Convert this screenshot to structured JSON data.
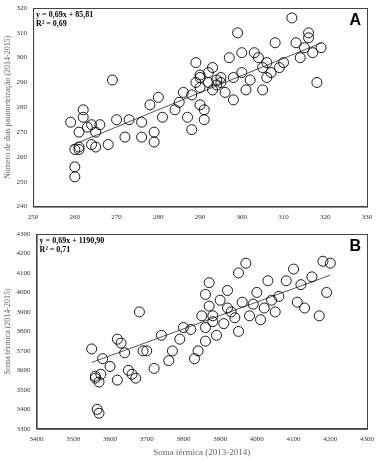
{
  "chart_data": [
    {
      "type": "scatter",
      "panel_label": "A",
      "annotations": [
        "y = 0,69x + 85,81",
        "R² = 0,69"
      ],
      "y_label": "Número de dias parametrização (2014-2015)",
      "trendline": {
        "slope": 0.69,
        "intercept": 85.81
      },
      "color": "#000000",
      "marker": "circle",
      "grid": false,
      "xlim": [
        250,
        330
      ],
      "xticks": [
        250,
        260,
        270,
        280,
        290,
        300,
        310,
        320,
        330
      ],
      "ylim": [
        240,
        320
      ],
      "yticks": [
        240,
        250,
        260,
        270,
        280,
        290,
        300,
        310,
        320
      ],
      "x": [
        259,
        260,
        261,
        261,
        260,
        260,
        261,
        262,
        262,
        263,
        264,
        264,
        265,
        265,
        266,
        268,
        269,
        270,
        272,
        273,
        276,
        276,
        278,
        279,
        279,
        280,
        281,
        284,
        285,
        286,
        287,
        288,
        288,
        289,
        289,
        290,
        290,
        290,
        290,
        291,
        291,
        292,
        292,
        293,
        293,
        294,
        294,
        295,
        295,
        296,
        297,
        298,
        298,
        299,
        300,
        300,
        301,
        302,
        303,
        304,
        305,
        305,
        306,
        306,
        307,
        308,
        309,
        310,
        312,
        313,
        314,
        315,
        316,
        316,
        317,
        318,
        319
      ],
      "values": [
        274,
        263,
        264,
        263,
        252,
        256,
        270,
        276,
        279,
        272,
        265,
        273,
        270,
        264,
        273,
        265,
        291,
        275,
        268,
        275,
        268,
        274,
        281,
        270,
        266,
        284,
        276,
        279,
        282,
        286,
        276,
        271,
        285,
        290,
        298,
        281,
        292,
        288,
        293,
        275,
        279,
        294,
        290,
        296,
        287,
        289,
        291,
        290,
        292,
        286,
        300,
        283,
        292,
        310,
        302,
        294,
        287,
        291,
        302,
        300,
        287,
        296,
        298,
        292,
        294,
        306,
        296,
        298,
        316,
        306,
        300,
        304,
        308,
        310,
        302,
        290,
        304
      ]
    },
    {
      "type": "scatter",
      "panel_label": "B",
      "annotations": [
        "y = 0,69x + 1190,90",
        "R² = 0,71"
      ],
      "x_label": "Soma térmica (2013-2014)",
      "y_label": "Soma térmica (2014-2015)",
      "trendline": {
        "slope": 0.69,
        "intercept": 1190.9
      },
      "color": "#000000",
      "marker": "circle",
      "grid": false,
      "xlim": [
        3400,
        4300
      ],
      "xticks": [
        3400,
        3500,
        3600,
        3700,
        3800,
        3900,
        4000,
        4100,
        4200,
        4300
      ],
      "ylim": [
        3300,
        4300
      ],
      "yticks": [
        3300,
        3400,
        3500,
        3600,
        3700,
        3800,
        3900,
        4000,
        4100,
        4200,
        4300
      ],
      "x": [
        3550,
        3560,
        3560,
        3570,
        3565,
        3570,
        3575,
        3580,
        3600,
        3620,
        3620,
        3630,
        3640,
        3650,
        3660,
        3670,
        3680,
        3690,
        3700,
        3720,
        3740,
        3760,
        3770,
        3790,
        3800,
        3820,
        3830,
        3840,
        3850,
        3860,
        3860,
        3860,
        3870,
        3870,
        3880,
        3880,
        3890,
        3900,
        3910,
        3920,
        3920,
        3930,
        3940,
        3950,
        3950,
        3960,
        3970,
        3980,
        3990,
        4000,
        4010,
        4020,
        4030,
        4040,
        4050,
        4060,
        4080,
        4100,
        4110,
        4120,
        4130,
        4150,
        4170,
        4180,
        4190,
        4200
      ],
      "values": [
        3710,
        3570,
        3560,
        3540,
        3400,
        3380,
        3580,
        3660,
        3620,
        3550,
        3760,
        3740,
        3690,
        3600,
        3580,
        3560,
        3900,
        3700,
        3700,
        3610,
        3780,
        3650,
        3700,
        3760,
        3820,
        3810,
        3660,
        3700,
        3880,
        3990,
        3750,
        3820,
        3930,
        4050,
        3880,
        3850,
        3780,
        3960,
        3840,
        3920,
        4010,
        3900,
        3870,
        4100,
        3800,
        3950,
        4150,
        3880,
        3940,
        4000,
        3860,
        3920,
        4060,
        3960,
        3900,
        3980,
        4060,
        4120,
        3950,
        4040,
        3920,
        4080,
        3880,
        4160,
        4000,
        4150
      ]
    }
  ]
}
